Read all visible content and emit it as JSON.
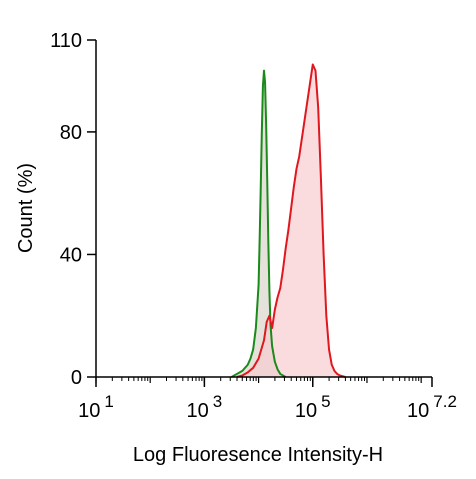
{
  "chart_data": {
    "type": "area",
    "title": "",
    "xlabel": "Log Fluoresence Intensity-H",
    "ylabel": "Count  (%)",
    "x_scale": "log",
    "xlim": [
      1,
      7.2
    ],
    "ylim": [
      0,
      110
    ],
    "x_ticks": [
      {
        "value": 1,
        "base": "10",
        "exp": "1"
      },
      {
        "value": 3,
        "base": "10",
        "exp": "3"
      },
      {
        "value": 5,
        "base": "10",
        "exp": "5"
      },
      {
        "value": 7.2,
        "base": "10",
        "exp": "7.2"
      }
    ],
    "y_ticks": [
      {
        "value": 0,
        "label": "0"
      },
      {
        "value": 40,
        "label": "40"
      },
      {
        "value": 80,
        "label": "80"
      },
      {
        "value": 110,
        "label": "110"
      }
    ],
    "grid": false,
    "series": [
      {
        "color": "#1a8a1a",
        "fill": "#cbc3b8",
        "fill_opacity": 0.5,
        "x": [
          3.5,
          3.6,
          3.7,
          3.8,
          3.85,
          3.9,
          3.95,
          4.0,
          4.02,
          4.04,
          4.06,
          4.08,
          4.1,
          4.12,
          4.14,
          4.16,
          4.18,
          4.2,
          4.22,
          4.25,
          4.3,
          4.35,
          4.4,
          4.5
        ],
        "y": [
          0,
          1,
          2,
          4,
          6,
          9,
          16,
          30,
          45,
          62,
          80,
          95,
          100,
          96,
          82,
          64,
          44,
          28,
          17,
          10,
          5,
          2.5,
          1,
          0
        ]
      },
      {
        "color": "#e0171d",
        "fill": "#f8cdd2",
        "fill_opacity": 0.7,
        "x": [
          3.6,
          3.7,
          3.8,
          3.9,
          4.0,
          4.1,
          4.15,
          4.2,
          4.25,
          4.3,
          4.35,
          4.4,
          4.45,
          4.5,
          4.55,
          4.6,
          4.65,
          4.7,
          4.75,
          4.8,
          4.85,
          4.9,
          4.95,
          5.0,
          5.05,
          5.1,
          5.15,
          5.2,
          5.25,
          5.3,
          5.35,
          5.4,
          5.45,
          5.5,
          5.6
        ],
        "y": [
          0,
          0.5,
          1.5,
          3,
          6,
          12,
          18,
          20,
          16,
          22,
          26,
          29,
          35,
          42,
          48,
          55,
          62,
          68,
          72,
          78,
          84,
          90,
          96,
          102,
          100,
          88,
          65,
          40,
          20,
          9,
          4,
          2,
          1,
          0.5,
          0
        ]
      }
    ]
  }
}
